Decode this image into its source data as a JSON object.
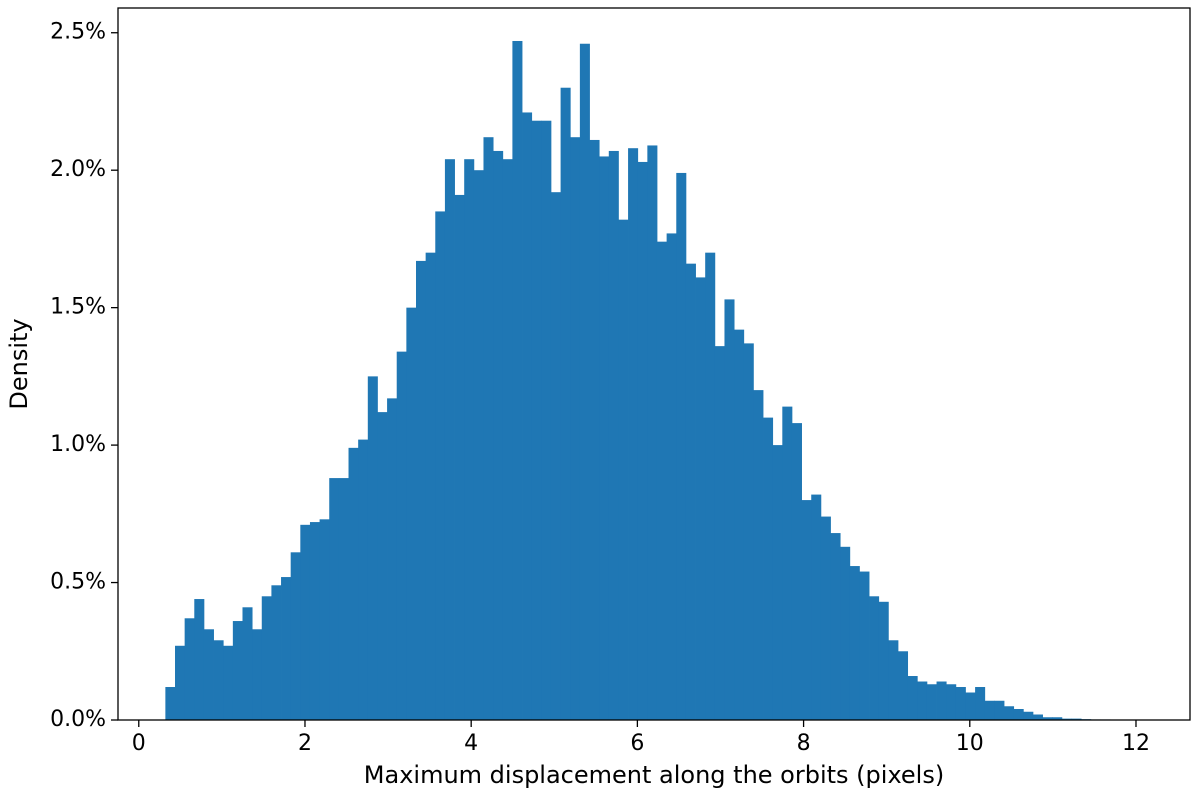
{
  "chart_data": {
    "type": "histogram",
    "xlabel": "Maximum displacement along the orbits (pixels)",
    "ylabel": "Density",
    "color": "#1f77b4",
    "grid": false,
    "xlim": [
      -0.25,
      12.65
    ],
    "ylim": [
      0,
      2.59
    ],
    "xticks": [
      0,
      2,
      4,
      6,
      8,
      10,
      12
    ],
    "yticks": [
      {
        "value": 0,
        "label": "0.0%"
      },
      {
        "value": 0.5,
        "label": "0.5%"
      },
      {
        "value": 1,
        "label": "1.0%"
      },
      {
        "value": 1.5,
        "label": "1.5%"
      },
      {
        "value": 2,
        "label": "2.0%"
      },
      {
        "value": 2.5,
        "label": "2.5%"
      }
    ],
    "bins": [
      0.32,
      0.436,
      0.552,
      0.668,
      0.784,
      0.9,
      1.016,
      1.132,
      1.248,
      1.364,
      1.48,
      1.596,
      1.712,
      1.828,
      1.944,
      2.06,
      2.176,
      2.292,
      2.408,
      2.524,
      2.64,
      2.756,
      2.872,
      2.988,
      3.104,
      3.22,
      3.336,
      3.452,
      3.568,
      3.684,
      3.8,
      3.916,
      4.032,
      4.148,
      4.264,
      4.38,
      4.496,
      4.612,
      4.728,
      4.844,
      4.96,
      5.076,
      5.192,
      5.308,
      5.424,
      5.54,
      5.656,
      5.772,
      5.888,
      6.004,
      6.12,
      6.236,
      6.352,
      6.468,
      6.584,
      6.7,
      6.816,
      6.932,
      7.048,
      7.164,
      7.28,
      7.396,
      7.512,
      7.628,
      7.744,
      7.86,
      7.976,
      8.092,
      8.208,
      8.324,
      8.44,
      8.556,
      8.672,
      8.788,
      8.904,
      9.02,
      9.136,
      9.252,
      9.368,
      9.484,
      9.6,
      9.716,
      9.832,
      9.948,
      10.064,
      10.18,
      10.296,
      10.412,
      10.528,
      10.644,
      10.76,
      10.876,
      10.992,
      11.108,
      11.224,
      11.34,
      11.456,
      11.572,
      11.688,
      11.804,
      11.92
    ],
    "values": [
      0.12,
      0.27,
      0.37,
      0.44,
      0.33,
      0.29,
      0.27,
      0.36,
      0.41,
      0.33,
      0.45,
      0.49,
      0.52,
      0.61,
      0.71,
      0.72,
      0.73,
      0.88,
      0.88,
      0.99,
      1.02,
      1.25,
      1.12,
      1.17,
      1.34,
      1.5,
      1.67,
      1.7,
      1.85,
      2.04,
      1.91,
      2.04,
      2.0,
      2.12,
      2.07,
      2.04,
      2.47,
      2.21,
      2.18,
      2.18,
      1.92,
      2.3,
      2.12,
      2.46,
      2.11,
      2.05,
      2.07,
      1.82,
      2.08,
      2.03,
      2.09,
      1.74,
      1.77,
      1.99,
      1.66,
      1.61,
      1.7,
      1.36,
      1.53,
      1.42,
      1.37,
      1.2,
      1.1,
      1.0,
      1.14,
      1.08,
      0.8,
      0.82,
      0.74,
      0.68,
      0.63,
      0.56,
      0.54,
      0.45,
      0.43,
      0.29,
      0.25,
      0.16,
      0.14,
      0.13,
      0.14,
      0.13,
      0.12,
      0.1,
      0.12,
      0.07,
      0.07,
      0.05,
      0.04,
      0.03,
      0.02,
      0.01,
      0.01,
      0.005,
      0.005,
      0.003,
      0.002,
      0.002,
      0.001,
      0.001
    ]
  }
}
